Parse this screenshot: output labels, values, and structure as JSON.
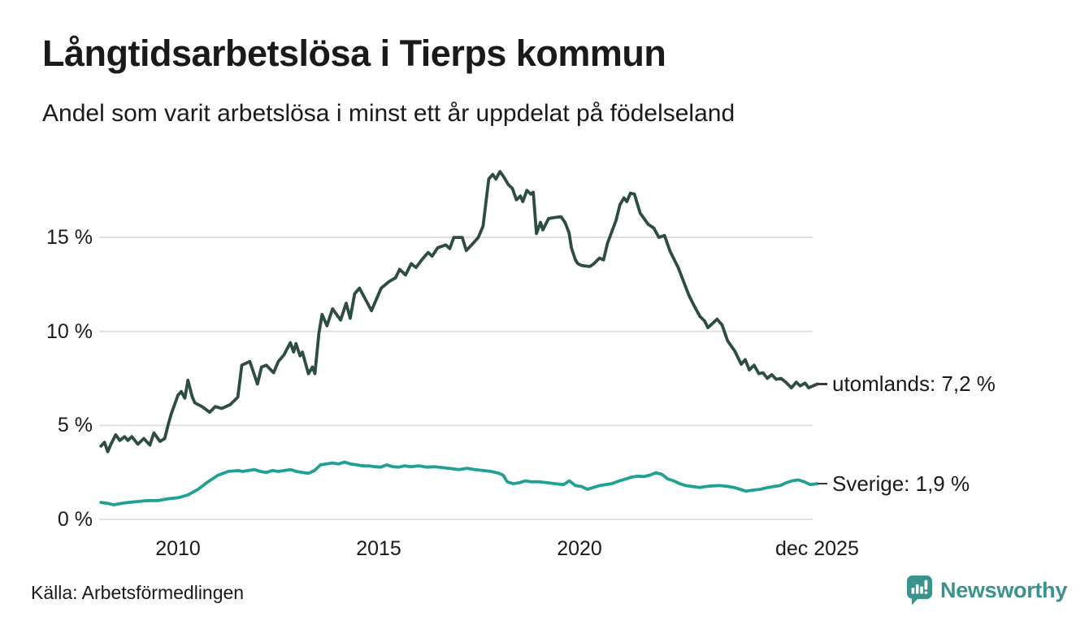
{
  "chart_data": {
    "type": "line",
    "title": "Långtidsarbetslösa i Tierps kommun",
    "subtitle": "Andel som varit arbetslösa i minst ett år uppdelat på födelseland",
    "xlabel": "",
    "ylabel": "",
    "unit": "%",
    "xlim": [
      2008.0,
      2026.2
    ],
    "ylim": [
      0,
      19.4
    ],
    "grid": "horizontal",
    "label_placement": "line-end",
    "yticks": [
      {
        "v": 0,
        "label": "0 %"
      },
      {
        "v": 5,
        "label": "5 %"
      },
      {
        "v": 10,
        "label": "10 %"
      },
      {
        "v": 15,
        "label": "15 %"
      }
    ],
    "xticks": [
      {
        "x": 2010,
        "label": "2010"
      },
      {
        "x": 2015,
        "label": "2015"
      },
      {
        "x": 2020,
        "label": "2020"
      },
      {
        "x": 2025.92,
        "label": "dec 2025"
      }
    ],
    "series": [
      {
        "name": "utomlands",
        "end_label": "utomlands: 7,2 %",
        "last_value": 7.2,
        "color": "#2d4d44",
        "points": [
          [
            2008.08,
            3.9
          ],
          [
            2008.17,
            4.1
          ],
          [
            2008.25,
            3.6
          ],
          [
            2008.33,
            4.0
          ],
          [
            2008.45,
            4.5
          ],
          [
            2008.55,
            4.2
          ],
          [
            2008.67,
            4.4
          ],
          [
            2008.75,
            4.2
          ],
          [
            2008.85,
            4.4
          ],
          [
            2009.0,
            4.0
          ],
          [
            2009.15,
            4.3
          ],
          [
            2009.3,
            3.95
          ],
          [
            2009.4,
            4.6
          ],
          [
            2009.55,
            4.15
          ],
          [
            2009.67,
            4.3
          ],
          [
            2009.75,
            5.0
          ],
          [
            2009.83,
            5.6
          ],
          [
            2010.0,
            6.6
          ],
          [
            2010.08,
            6.8
          ],
          [
            2010.17,
            6.45
          ],
          [
            2010.25,
            7.4
          ],
          [
            2010.35,
            6.55
          ],
          [
            2010.42,
            6.2
          ],
          [
            2010.6,
            6.0
          ],
          [
            2010.79,
            5.7
          ],
          [
            2010.93,
            6.0
          ],
          [
            2011.09,
            5.9
          ],
          [
            2011.3,
            6.1
          ],
          [
            2011.49,
            6.5
          ],
          [
            2011.59,
            8.2
          ],
          [
            2011.79,
            8.4
          ],
          [
            2011.98,
            7.2
          ],
          [
            2012.08,
            8.1
          ],
          [
            2012.2,
            8.2
          ],
          [
            2012.38,
            7.8
          ],
          [
            2012.5,
            8.4
          ],
          [
            2012.64,
            8.75
          ],
          [
            2012.8,
            9.4
          ],
          [
            2012.88,
            8.9
          ],
          [
            2012.94,
            9.35
          ],
          [
            2013.04,
            8.7
          ],
          [
            2013.1,
            8.9
          ],
          [
            2013.25,
            7.75
          ],
          [
            2013.35,
            8.1
          ],
          [
            2013.41,
            7.75
          ],
          [
            2013.51,
            9.9
          ],
          [
            2013.59,
            10.9
          ],
          [
            2013.71,
            10.3
          ],
          [
            2013.85,
            11.2
          ],
          [
            2014.05,
            10.6
          ],
          [
            2014.19,
            11.5
          ],
          [
            2014.29,
            10.7
          ],
          [
            2014.4,
            12.0
          ],
          [
            2014.52,
            12.3
          ],
          [
            2014.72,
            11.5
          ],
          [
            2014.82,
            11.1
          ],
          [
            2015.06,
            12.3
          ],
          [
            2015.26,
            12.65
          ],
          [
            2015.42,
            12.85
          ],
          [
            2015.52,
            13.3
          ],
          [
            2015.67,
            13.0
          ],
          [
            2015.81,
            13.6
          ],
          [
            2015.93,
            13.4
          ],
          [
            2016.07,
            13.8
          ],
          [
            2016.23,
            14.2
          ],
          [
            2016.33,
            14.0
          ],
          [
            2016.47,
            14.45
          ],
          [
            2016.67,
            14.6
          ],
          [
            2016.77,
            14.4
          ],
          [
            2016.87,
            15.0
          ],
          [
            2017.08,
            15.0
          ],
          [
            2017.18,
            14.3
          ],
          [
            2017.38,
            14.75
          ],
          [
            2017.48,
            15.0
          ],
          [
            2017.6,
            15.6
          ],
          [
            2017.74,
            18.1
          ],
          [
            2017.84,
            18.35
          ],
          [
            2017.92,
            18.1
          ],
          [
            2018.02,
            18.5
          ],
          [
            2018.12,
            18.2
          ],
          [
            2018.23,
            17.8
          ],
          [
            2018.33,
            17.6
          ],
          [
            2018.43,
            17.0
          ],
          [
            2018.53,
            17.2
          ],
          [
            2018.59,
            16.9
          ],
          [
            2018.69,
            17.5
          ],
          [
            2018.79,
            17.3
          ],
          [
            2018.85,
            17.4
          ],
          [
            2018.93,
            15.2
          ],
          [
            2019.03,
            15.8
          ],
          [
            2019.09,
            15.4
          ],
          [
            2019.23,
            16.0
          ],
          [
            2019.36,
            16.05
          ],
          [
            2019.54,
            16.1
          ],
          [
            2019.64,
            15.8
          ],
          [
            2019.74,
            15.25
          ],
          [
            2019.8,
            14.45
          ],
          [
            2019.9,
            13.8
          ],
          [
            2019.96,
            13.6
          ],
          [
            2020.06,
            13.5
          ],
          [
            2020.26,
            13.45
          ],
          [
            2020.36,
            13.6
          ],
          [
            2020.5,
            13.9
          ],
          [
            2020.6,
            13.8
          ],
          [
            2020.7,
            14.7
          ],
          [
            2020.91,
            15.9
          ],
          [
            2021.01,
            16.75
          ],
          [
            2021.11,
            17.1
          ],
          [
            2021.18,
            16.9
          ],
          [
            2021.27,
            17.35
          ],
          [
            2021.37,
            17.3
          ],
          [
            2021.51,
            16.3
          ],
          [
            2021.71,
            15.7
          ],
          [
            2021.85,
            15.5
          ],
          [
            2021.98,
            15.0
          ],
          [
            2022.12,
            15.1
          ],
          [
            2022.26,
            14.25
          ],
          [
            2022.46,
            13.4
          ],
          [
            2022.72,
            11.95
          ],
          [
            2022.86,
            11.35
          ],
          [
            2023.0,
            10.8
          ],
          [
            2023.12,
            10.55
          ],
          [
            2023.2,
            10.2
          ],
          [
            2023.43,
            10.65
          ],
          [
            2023.55,
            10.35
          ],
          [
            2023.69,
            9.5
          ],
          [
            2023.87,
            8.95
          ],
          [
            2024.03,
            8.25
          ],
          [
            2024.13,
            8.5
          ],
          [
            2024.23,
            7.95
          ],
          [
            2024.35,
            8.2
          ],
          [
            2024.47,
            7.75
          ],
          [
            2024.57,
            7.8
          ],
          [
            2024.68,
            7.5
          ],
          [
            2024.79,
            7.7
          ],
          [
            2024.9,
            7.45
          ],
          [
            2025.02,
            7.5
          ],
          [
            2025.14,
            7.3
          ],
          [
            2025.28,
            7.0
          ],
          [
            2025.4,
            7.3
          ],
          [
            2025.5,
            7.1
          ],
          [
            2025.62,
            7.25
          ],
          [
            2025.71,
            7.0
          ],
          [
            2025.92,
            7.2
          ]
        ]
      },
      {
        "name": "Sverige",
        "end_label": "Sverige: 1,9 %",
        "last_value": 1.9,
        "color": "#20a191",
        "points": [
          [
            2008.08,
            0.9
          ],
          [
            2008.25,
            0.85
          ],
          [
            2008.4,
            0.78
          ],
          [
            2008.6,
            0.85
          ],
          [
            2008.75,
            0.9
          ],
          [
            2009.0,
            0.95
          ],
          [
            2009.25,
            1.0
          ],
          [
            2009.5,
            1.0
          ],
          [
            2009.75,
            1.1
          ],
          [
            2010.0,
            1.15
          ],
          [
            2010.25,
            1.3
          ],
          [
            2010.5,
            1.6
          ],
          [
            2010.75,
            2.0
          ],
          [
            2011.0,
            2.35
          ],
          [
            2011.25,
            2.55
          ],
          [
            2011.5,
            2.6
          ],
          [
            2011.6,
            2.55
          ],
          [
            2011.75,
            2.6
          ],
          [
            2011.9,
            2.65
          ],
          [
            2012.05,
            2.55
          ],
          [
            2012.2,
            2.5
          ],
          [
            2012.35,
            2.6
          ],
          [
            2012.5,
            2.55
          ],
          [
            2012.65,
            2.6
          ],
          [
            2012.8,
            2.65
          ],
          [
            2012.95,
            2.55
          ],
          [
            2013.1,
            2.5
          ],
          [
            2013.25,
            2.45
          ],
          [
            2013.4,
            2.6
          ],
          [
            2013.55,
            2.9
          ],
          [
            2013.7,
            2.95
          ],
          [
            2013.85,
            3.0
          ],
          [
            2014.0,
            2.95
          ],
          [
            2014.15,
            3.05
          ],
          [
            2014.3,
            2.95
          ],
          [
            2014.45,
            2.9
          ],
          [
            2014.6,
            2.85
          ],
          [
            2014.75,
            2.85
          ],
          [
            2014.9,
            2.8
          ],
          [
            2015.05,
            2.78
          ],
          [
            2015.2,
            2.9
          ],
          [
            2015.35,
            2.8
          ],
          [
            2015.5,
            2.78
          ],
          [
            2015.65,
            2.85
          ],
          [
            2015.8,
            2.8
          ],
          [
            2016.0,
            2.85
          ],
          [
            2016.2,
            2.78
          ],
          [
            2016.4,
            2.8
          ],
          [
            2016.6,
            2.75
          ],
          [
            2016.8,
            2.7
          ],
          [
            2017.0,
            2.65
          ],
          [
            2017.2,
            2.72
          ],
          [
            2017.4,
            2.65
          ],
          [
            2017.6,
            2.6
          ],
          [
            2017.8,
            2.55
          ],
          [
            2018.0,
            2.45
          ],
          [
            2018.1,
            2.35
          ],
          [
            2018.2,
            2.0
          ],
          [
            2018.35,
            1.9
          ],
          [
            2018.5,
            1.95
          ],
          [
            2018.65,
            2.05
          ],
          [
            2018.8,
            2.0
          ],
          [
            2019.0,
            2.0
          ],
          [
            2019.2,
            1.95
          ],
          [
            2019.4,
            1.9
          ],
          [
            2019.6,
            1.85
          ],
          [
            2019.75,
            2.05
          ],
          [
            2019.9,
            1.8
          ],
          [
            2020.05,
            1.75
          ],
          [
            2020.2,
            1.6
          ],
          [
            2020.35,
            1.7
          ],
          [
            2020.5,
            1.8
          ],
          [
            2020.65,
            1.85
          ],
          [
            2020.8,
            1.9
          ],
          [
            2021.0,
            2.05
          ],
          [
            2021.15,
            2.15
          ],
          [
            2021.3,
            2.25
          ],
          [
            2021.45,
            2.3
          ],
          [
            2021.6,
            2.28
          ],
          [
            2021.75,
            2.35
          ],
          [
            2021.9,
            2.48
          ],
          [
            2022.05,
            2.4
          ],
          [
            2022.2,
            2.15
          ],
          [
            2022.35,
            2.05
          ],
          [
            2022.5,
            1.9
          ],
          [
            2022.65,
            1.8
          ],
          [
            2022.8,
            1.75
          ],
          [
            2023.0,
            1.7
          ],
          [
            2023.15,
            1.75
          ],
          [
            2023.3,
            1.78
          ],
          [
            2023.5,
            1.8
          ],
          [
            2023.7,
            1.75
          ],
          [
            2023.85,
            1.7
          ],
          [
            2024.0,
            1.6
          ],
          [
            2024.15,
            1.5
          ],
          [
            2024.3,
            1.55
          ],
          [
            2024.5,
            1.6
          ],
          [
            2024.7,
            1.7
          ],
          [
            2024.85,
            1.75
          ],
          [
            2025.0,
            1.8
          ],
          [
            2025.15,
            1.95
          ],
          [
            2025.3,
            2.05
          ],
          [
            2025.45,
            2.1
          ],
          [
            2025.6,
            2.0
          ],
          [
            2025.75,
            1.85
          ],
          [
            2025.92,
            1.9
          ]
        ]
      }
    ]
  },
  "footer": {
    "source": "Källa: Arbetsförmedlingen",
    "brand_name": "Newsworthy"
  },
  "colors": {
    "utomlands_line": "#2d4d44",
    "sverige_line": "#20a191",
    "gridline": "#e0e0e0",
    "text": "#1a1a1a",
    "brand": "#3a948d"
  }
}
